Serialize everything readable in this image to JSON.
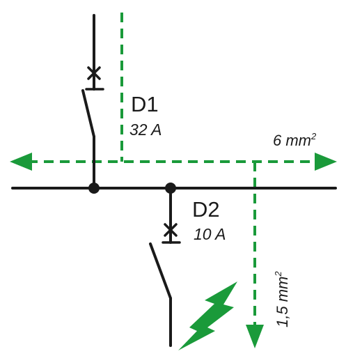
{
  "colors": {
    "conductor": "#1a1a1a",
    "current_path": "#1a9a3a",
    "fault_symbol": "#1a9a3a"
  },
  "devices": {
    "d1": {
      "name": "D1",
      "rating": "32 A"
    },
    "d2": {
      "name": "D2",
      "rating": "10 A"
    }
  },
  "sections": {
    "upstream": {
      "value": "6 mm",
      "exponent": "2"
    },
    "downstream": {
      "value": "1,5 mm",
      "exponent": "2"
    }
  },
  "icons": {
    "fault": "lightning-bolt-icon",
    "breaker": "circuit-breaker-symbol"
  }
}
